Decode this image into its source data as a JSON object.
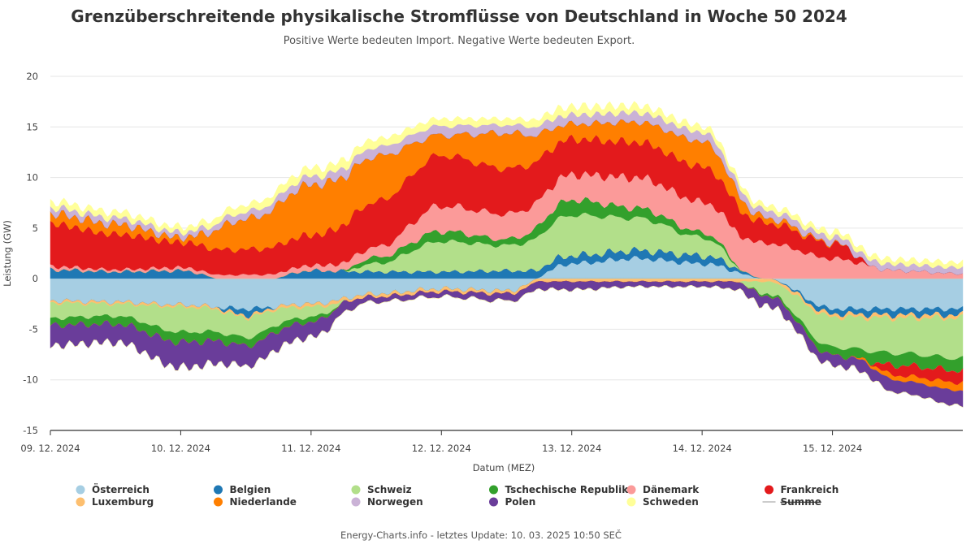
{
  "chart_data": {
    "type": "area",
    "stacked": true,
    "title": "Grenzüberschreitende physikalische Stromflüsse von Deutschland in Woche 50 2024",
    "subtitle": "Positive Werte bedeuten Import. Negative Werte bedeuten Export.",
    "xlabel": "Datum (MEZ)",
    "ylabel": "Leistung (GW)",
    "ylim": [
      -15,
      20
    ],
    "yticks": [
      -15,
      -10,
      -5,
      0,
      5,
      10,
      15,
      20
    ],
    "x_tick_labels": [
      "09. 12. 2024",
      "10. 12. 2024",
      "11. 12. 2024",
      "12. 12. 2024",
      "13. 12. 2024",
      "14. 12. 2024",
      "15. 12. 2024"
    ],
    "x_hours": [
      0,
      12,
      24,
      36,
      48,
      60,
      72,
      84,
      96,
      108,
      120,
      132,
      144,
      156,
      168
    ],
    "series": [
      {
        "name": "Österreich",
        "color": "#a6cee3",
        "values": [
          -2.2,
          -2.3,
          -2.6,
          -3.0,
          -2.5,
          -1.5,
          -1.0,
          -1.2,
          1.5,
          2.0,
          1.5,
          0.0,
          -3.0,
          -3.0,
          -3.0
        ]
      },
      {
        "name": "Belgien",
        "color": "#1f78b4",
        "values": [
          0.9,
          0.7,
          0.8,
          -0.6,
          0.8,
          0.7,
          0.7,
          0.8,
          0.8,
          0.8,
          0.8,
          0.0,
          -0.5,
          -0.6,
          -0.6
        ]
      },
      {
        "name": "Schweiz",
        "color": "#b2df8a",
        "values": [
          -1.5,
          -1.2,
          -2.5,
          -2.0,
          -1.0,
          0.8,
          3.0,
          2.5,
          4.0,
          3.2,
          1.8,
          -1.2,
          -3.0,
          -3.5,
          -4.0
        ]
      },
      {
        "name": "Tschechische Republik",
        "color": "#33a02c",
        "values": [
          -0.7,
          -0.8,
          -1.0,
          -0.8,
          -0.5,
          0.6,
          1.0,
          0.6,
          1.5,
          1.0,
          0.5,
          -0.2,
          -0.8,
          -1.2,
          -1.2
        ]
      },
      {
        "name": "Dänemark",
        "color": "#fb9a99",
        "values": [
          0.3,
          0.2,
          0.3,
          0.4,
          0.5,
          1.0,
          2.5,
          2.5,
          2.5,
          3.0,
          3.0,
          3.5,
          2.0,
          0.8,
          0.5
        ]
      },
      {
        "name": "Frankreich",
        "color": "#e31a1c",
        "values": [
          4.2,
          3.5,
          2.5,
          2.5,
          3.0,
          4.5,
          5.0,
          4.5,
          3.5,
          3.5,
          3.5,
          2.0,
          1.5,
          -1.0,
          -1.2
        ]
      },
      {
        "name": "Luxemburg",
        "color": "#fdbf6f",
        "values": [
          -0.2,
          -0.2,
          -0.2,
          -0.2,
          -0.3,
          -0.3,
          -0.3,
          -0.3,
          -0.3,
          -0.3,
          -0.3,
          -0.3,
          -0.3,
          -0.3,
          -0.3
        ]
      },
      {
        "name": "Niederlande",
        "color": "#ff7f00",
        "values": [
          1.0,
          1.0,
          0.5,
          3.0,
          5.0,
          4.5,
          2.0,
          3.5,
          1.5,
          2.0,
          2.5,
          0.5,
          0.1,
          -0.5,
          -0.8
        ]
      },
      {
        "name": "Norwegen",
        "color": "#cab2d6",
        "values": [
          0.6,
          0.6,
          0.5,
          0.7,
          0.8,
          0.9,
          0.9,
          0.8,
          0.9,
          0.9,
          0.9,
          0.7,
          0.6,
          0.6,
          0.6
        ]
      },
      {
        "name": "Polen",
        "color": "#6a3d9a",
        "values": [
          -2.0,
          -1.8,
          -2.5,
          -2.0,
          -1.5,
          -0.5,
          -0.5,
          -0.7,
          -0.8,
          -0.5,
          -0.5,
          -1.0,
          -1.0,
          -1.2,
          -1.5
        ]
      },
      {
        "name": "Schweden",
        "color": "#ffff99",
        "values": [
          0.6,
          0.6,
          0.5,
          0.7,
          0.8,
          0.8,
          0.7,
          0.6,
          0.8,
          0.7,
          0.6,
          0.5,
          0.5,
          0.5,
          0.5
        ]
      },
      {
        "name": "Summe",
        "color": "#cccccc",
        "hidden": true,
        "values": []
      }
    ],
    "legend_position": "bottom",
    "grid": true
  },
  "credits": "Energy-Charts.info - letztes Update: 10. 03. 2025 10:50 SEČ"
}
